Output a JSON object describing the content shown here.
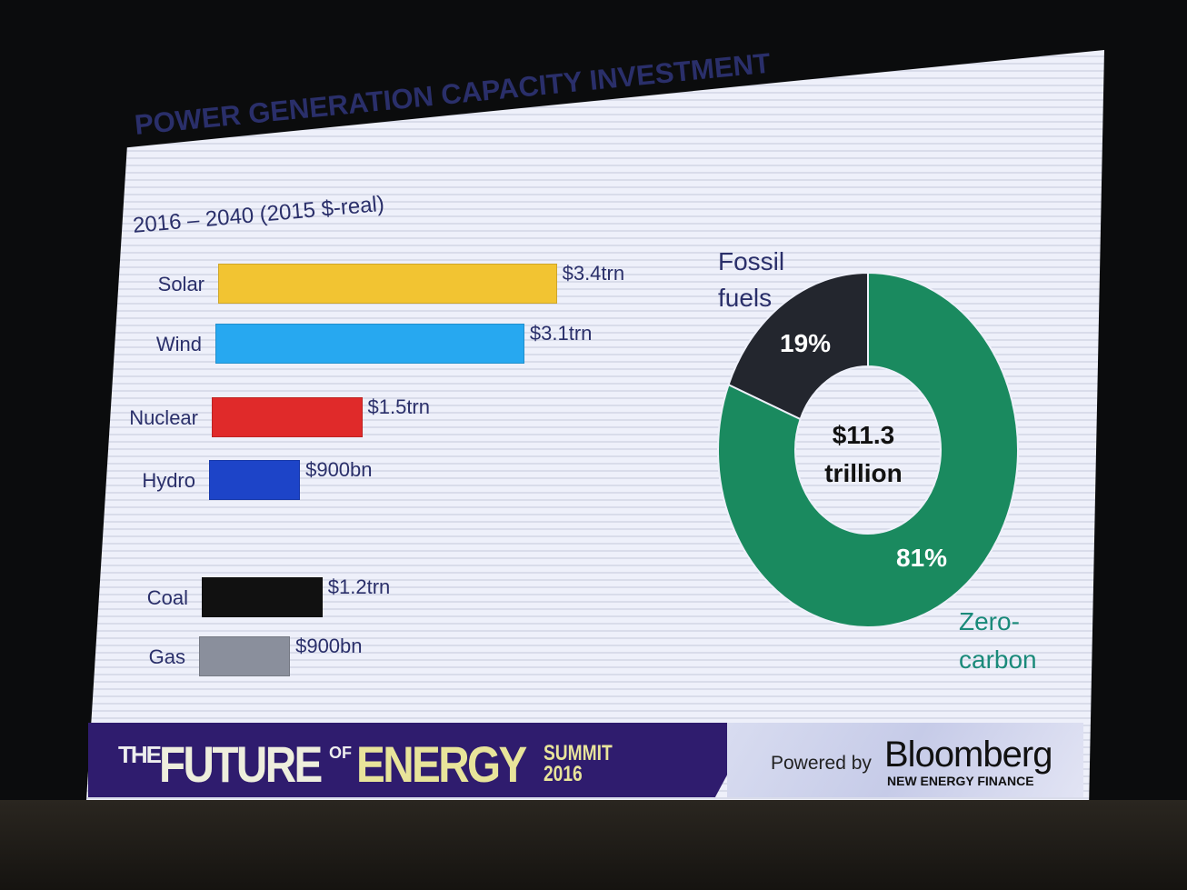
{
  "slide": {
    "title": "POWER GENERATION CAPACITY INVESTMENT",
    "subtitle": "2016 – 2040 (2015 $-real)"
  },
  "chart_data": [
    {
      "type": "bar",
      "orientation": "horizontal",
      "unit": "trillion USD (2015 real)",
      "categories": [
        "Solar",
        "Wind",
        "Nuclear",
        "Hydro",
        "Coal",
        "Gas"
      ],
      "values": [
        3.4,
        3.1,
        1.5,
        0.9,
        1.2,
        0.9
      ],
      "data_labels": [
        "$3.4trn",
        "$3.1trn",
        "$1.5trn",
        "$900bn",
        "$1.2trn",
        "$900bn"
      ],
      "colors": [
        "#f2c432",
        "#27a8f0",
        "#e02a2a",
        "#1d44c8",
        "#111111",
        "#8a8f9c"
      ]
    },
    {
      "type": "pie",
      "style": "donut",
      "center_label": [
        "$11.3",
        "trillion"
      ],
      "slices": [
        {
          "name": "Fossil fuels",
          "value": 19,
          "label": "19%",
          "legend": [
            "Fossil",
            "fuels"
          ],
          "color": "#23262e"
        },
        {
          "name": "Zero-carbon",
          "value": 81,
          "label": "81%",
          "legend": [
            "Zero-",
            "carbon"
          ],
          "color": "#1a8a5f"
        }
      ]
    }
  ],
  "footer": {
    "the": "THE",
    "future": "FUTURE",
    "of": "OF",
    "energy": "ENERGY",
    "summit": "SUMMIT",
    "year": "2016",
    "powered_by": "Powered by",
    "brand": "Bloomberg",
    "brand_sub": "NEW ENERGY FINANCE"
  }
}
